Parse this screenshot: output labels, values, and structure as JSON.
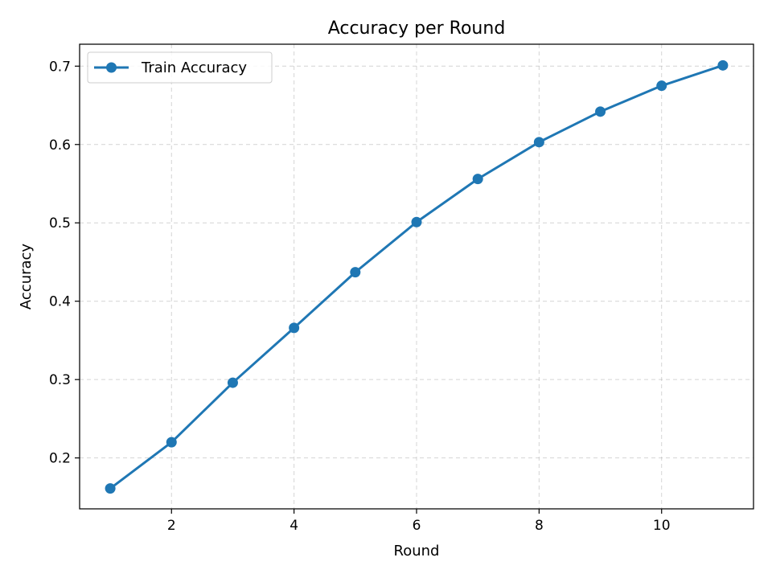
{
  "chart_data": {
    "type": "line",
    "title": "Accuracy per Round",
    "xlabel": "Round",
    "ylabel": "Accuracy",
    "xlim": [
      0.5,
      11.5
    ],
    "ylim": [
      0.135,
      0.728
    ],
    "xticks": [
      2,
      4,
      6,
      8,
      10
    ],
    "yticks": [
      0.2,
      0.3,
      0.4,
      0.5,
      0.6,
      0.7
    ],
    "xtick_labels": [
      "2",
      "4",
      "6",
      "8",
      "10"
    ],
    "ytick_labels": [
      "0.2",
      "0.3",
      "0.4",
      "0.5",
      "0.6",
      "0.7"
    ],
    "grid": true,
    "legend_position": "top-left",
    "series": [
      {
        "name": "Train Accuracy",
        "color": "#1f77b4",
        "x": [
          1,
          2,
          3,
          4,
          5,
          6,
          7,
          8,
          9,
          10,
          11
        ],
        "values": [
          0.161,
          0.22,
          0.296,
          0.366,
          0.437,
          0.501,
          0.556,
          0.603,
          0.642,
          0.675,
          0.701
        ]
      }
    ]
  }
}
